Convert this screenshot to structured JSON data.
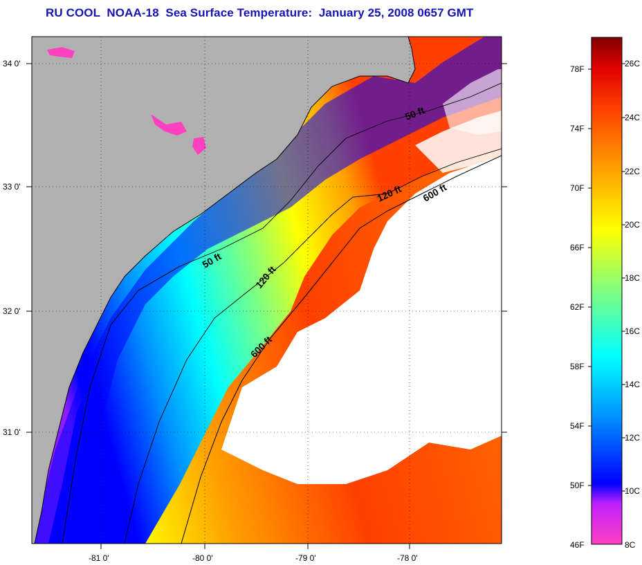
{
  "title": "RU COOL  NOAA-18  Sea Surface Temperature:  January 25, 2008 0657 GMT",
  "map": {
    "lat_labels": [
      "34 0'",
      "33 0'",
      "32 0'",
      "31 0'"
    ],
    "lon_labels": [
      "-81 0'",
      "-80 0'",
      "-79 0'",
      "-78 0'"
    ],
    "depth_contours": {
      "shallow": [
        "50 ft",
        "50 ft"
      ],
      "mid": [
        "120 ft",
        "120 ft"
      ],
      "deep": [
        "600 ft",
        "600 ft"
      ]
    }
  },
  "colorbar": {
    "fahrenheit_labels": [
      "78F",
      "74F",
      "70F",
      "66F",
      "62F",
      "58F",
      "54F",
      "50F",
      "46F"
    ],
    "celsius_labels": [
      "26C",
      "24C",
      "22C",
      "20C",
      "18C",
      "16C",
      "14C",
      "12C",
      "10C",
      "8C"
    ],
    "colors": [
      "#ff40c0",
      "#a020ff",
      "#0000ff",
      "#0090ff",
      "#00ffff",
      "#80ff80",
      "#ffff00",
      "#ffa000",
      "#ff4000",
      "#e00000",
      "#800000"
    ],
    "land_color": "#b0b0b0",
    "cloud_color": "#ffffff"
  }
}
